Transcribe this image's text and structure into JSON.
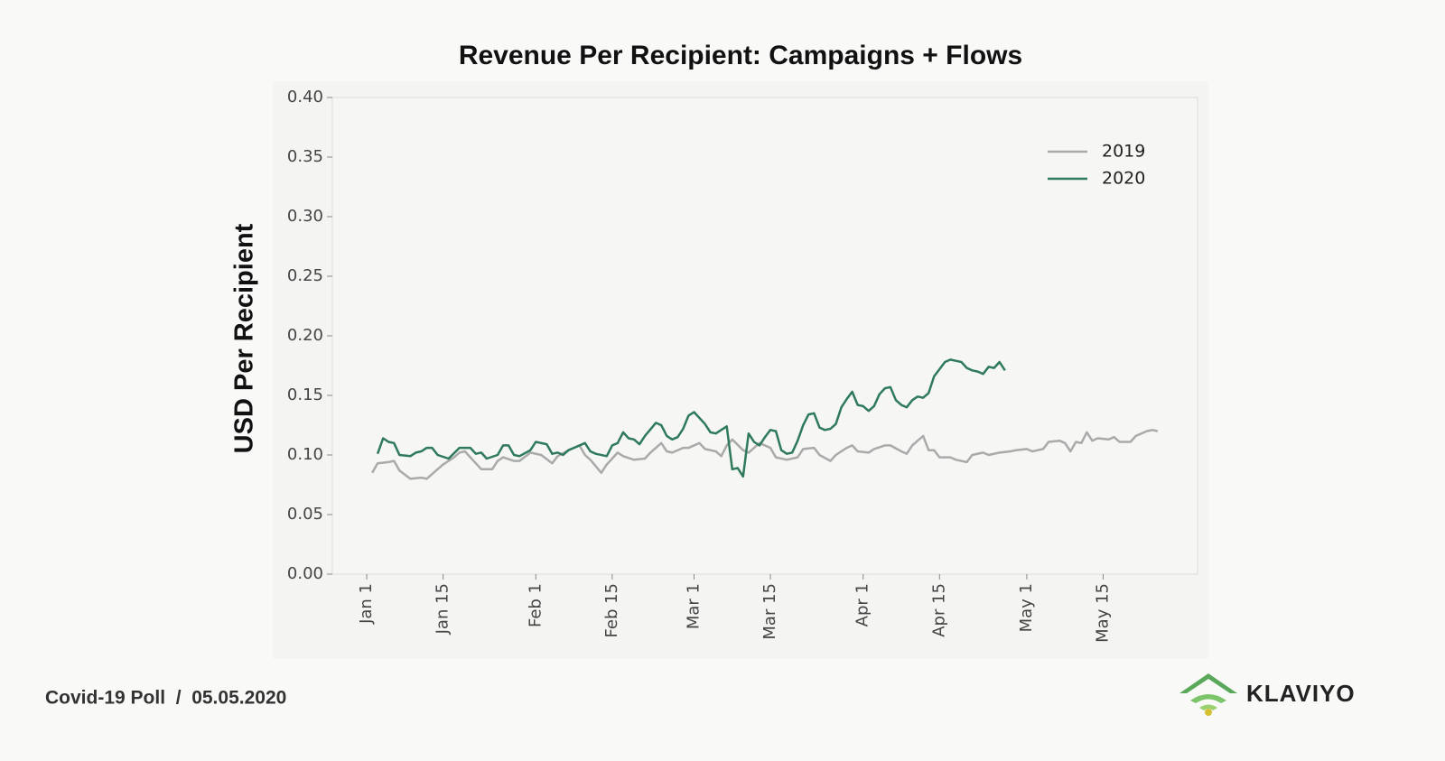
{
  "chart_data": {
    "type": "line",
    "title": "Revenue Per Recipient: Campaigns + Flows",
    "y_label": "USD Per Recipient",
    "xlim": [
      -6.3,
      152.3
    ],
    "xticks": [
      {
        "value": 0,
        "label": "Jan 1"
      },
      {
        "value": 14,
        "label": "Jan 15"
      },
      {
        "value": 31,
        "label": "Feb 1"
      },
      {
        "value": 45,
        "label": "Feb 15"
      },
      {
        "value": 60,
        "label": "Mar 1"
      },
      {
        "value": 74,
        "label": "Mar 15"
      },
      {
        "value": 91,
        "label": "Apr 1"
      },
      {
        "value": 105,
        "label": "Apr 15"
      },
      {
        "value": 121,
        "label": "May 1"
      },
      {
        "value": 135,
        "label": "May 15"
      }
    ],
    "ylim": [
      0,
      0.4
    ],
    "yticks": [
      {
        "value": 0,
        "label": "0.00"
      },
      {
        "value": 0.05,
        "label": "0.05"
      },
      {
        "value": 0.1,
        "label": "0.10"
      },
      {
        "value": 0.15,
        "label": "0.15"
      },
      {
        "value": 0.2,
        "label": "0.20"
      },
      {
        "value": 0.25,
        "label": "0.25"
      },
      {
        "value": 0.3,
        "label": "0.30"
      },
      {
        "value": 0.35,
        "label": "0.35"
      },
      {
        "value": 0.4,
        "label": "0.40"
      }
    ],
    "legend": "upper right",
    "series": [
      {
        "name": "2019",
        "color": "#aaaaaa",
        "x": [
          1,
          2,
          4,
          5,
          6,
          8,
          10,
          11,
          12,
          14,
          16,
          17,
          18,
          19,
          21,
          23,
          24,
          25,
          27,
          28,
          30,
          32,
          34,
          35,
          37,
          39,
          40,
          41,
          43,
          44,
          46,
          47,
          49,
          51,
          52,
          54,
          55,
          56,
          58,
          59,
          61,
          62,
          64,
          65,
          66,
          67,
          69,
          70,
          72,
          74,
          75,
          77,
          79,
          80,
          82,
          83,
          85,
          86,
          88,
          89,
          90,
          92,
          93,
          95,
          96,
          98,
          99,
          100,
          102,
          103,
          104,
          105,
          107,
          108,
          110,
          111,
          113,
          114,
          116,
          118,
          119,
          121,
          122,
          124,
          125,
          127,
          128,
          129,
          130,
          131,
          132,
          133,
          134,
          136,
          137,
          138,
          140,
          141,
          143,
          144,
          145
        ],
        "values": [
          0.085,
          0.093,
          0.094,
          0.095,
          0.087,
          0.08,
          0.081,
          0.08,
          0.084,
          0.092,
          0.098,
          0.102,
          0.103,
          0.098,
          0.088,
          0.088,
          0.095,
          0.098,
          0.095,
          0.095,
          0.102,
          0.1,
          0.093,
          0.099,
          0.104,
          0.108,
          0.1,
          0.096,
          0.085,
          0.092,
          0.102,
          0.099,
          0.096,
          0.097,
          0.102,
          0.11,
          0.103,
          0.102,
          0.106,
          0.106,
          0.11,
          0.105,
          0.103,
          0.099,
          0.108,
          0.113,
          0.104,
          0.102,
          0.11,
          0.106,
          0.098,
          0.096,
          0.098,
          0.105,
          0.106,
          0.1,
          0.095,
          0.1,
          0.106,
          0.108,
          0.103,
          0.102,
          0.105,
          0.108,
          0.108,
          0.103,
          0.101,
          0.108,
          0.116,
          0.104,
          0.104,
          0.098,
          0.098,
          0.096,
          0.094,
          0.1,
          0.102,
          0.1,
          0.102,
          0.103,
          0.104,
          0.105,
          0.103,
          0.105,
          0.111,
          0.112,
          0.11,
          0.103,
          0.111,
          0.11,
          0.119,
          0.112,
          0.114,
          0.113,
          0.115,
          0.111,
          0.111,
          0.116,
          0.12,
          0.121,
          0.12
        ]
      },
      {
        "name": "2020",
        "color": "#2e7a5a",
        "x": [
          2,
          3,
          4,
          5,
          6,
          8,
          9,
          10,
          11,
          12,
          13,
          15,
          17,
          19,
          20,
          21,
          22,
          24,
          25,
          26,
          27,
          28,
          30,
          31,
          33,
          34,
          35,
          36,
          37,
          38,
          40,
          41,
          42,
          44,
          45,
          46,
          47,
          48,
          49,
          50,
          51,
          53,
          54,
          55,
          56,
          57,
          58,
          59,
          60,
          62,
          63,
          64,
          66,
          67,
          68,
          69,
          70,
          71,
          72,
          73,
          74,
          75,
          76,
          77,
          78,
          79,
          80,
          81,
          82,
          83,
          84,
          85,
          86,
          87,
          88,
          89,
          90,
          91,
          92,
          93,
          94,
          95,
          96,
          97,
          98,
          99,
          100,
          101,
          102,
          103,
          104,
          105,
          106,
          107,
          108,
          109,
          110,
          111,
          112,
          113,
          114,
          115,
          116,
          117
        ],
        "values": [
          0.101,
          0.114,
          0.111,
          0.11,
          0.1,
          0.099,
          0.102,
          0.103,
          0.106,
          0.106,
          0.1,
          0.097,
          0.106,
          0.106,
          0.101,
          0.102,
          0.097,
          0.1,
          0.108,
          0.108,
          0.1,
          0.099,
          0.104,
          0.111,
          0.109,
          0.101,
          0.102,
          0.1,
          0.104,
          0.106,
          0.11,
          0.103,
          0.101,
          0.099,
          0.108,
          0.11,
          0.119,
          0.114,
          0.113,
          0.109,
          0.116,
          0.127,
          0.125,
          0.116,
          0.113,
          0.115,
          0.122,
          0.133,
          0.136,
          0.126,
          0.119,
          0.118,
          0.124,
          0.088,
          0.089,
          0.082,
          0.118,
          0.111,
          0.108,
          0.115,
          0.121,
          0.12,
          0.104,
          0.101,
          0.102,
          0.112,
          0.125,
          0.134,
          0.135,
          0.123,
          0.121,
          0.122,
          0.126,
          0.14,
          0.147,
          0.153,
          0.142,
          0.141,
          0.137,
          0.141,
          0.151,
          0.156,
          0.157,
          0.146,
          0.142,
          0.14,
          0.146,
          0.149,
          0.148,
          0.152,
          0.166,
          0.172,
          0.178,
          0.18,
          0.179,
          0.178,
          0.173,
          0.171,
          0.17,
          0.168,
          0.174,
          0.173,
          0.178,
          0.171
        ]
      }
    ]
  },
  "footer": "Covid-19 Poll  /  05.05.2020",
  "brand": "KLAVIYO"
}
